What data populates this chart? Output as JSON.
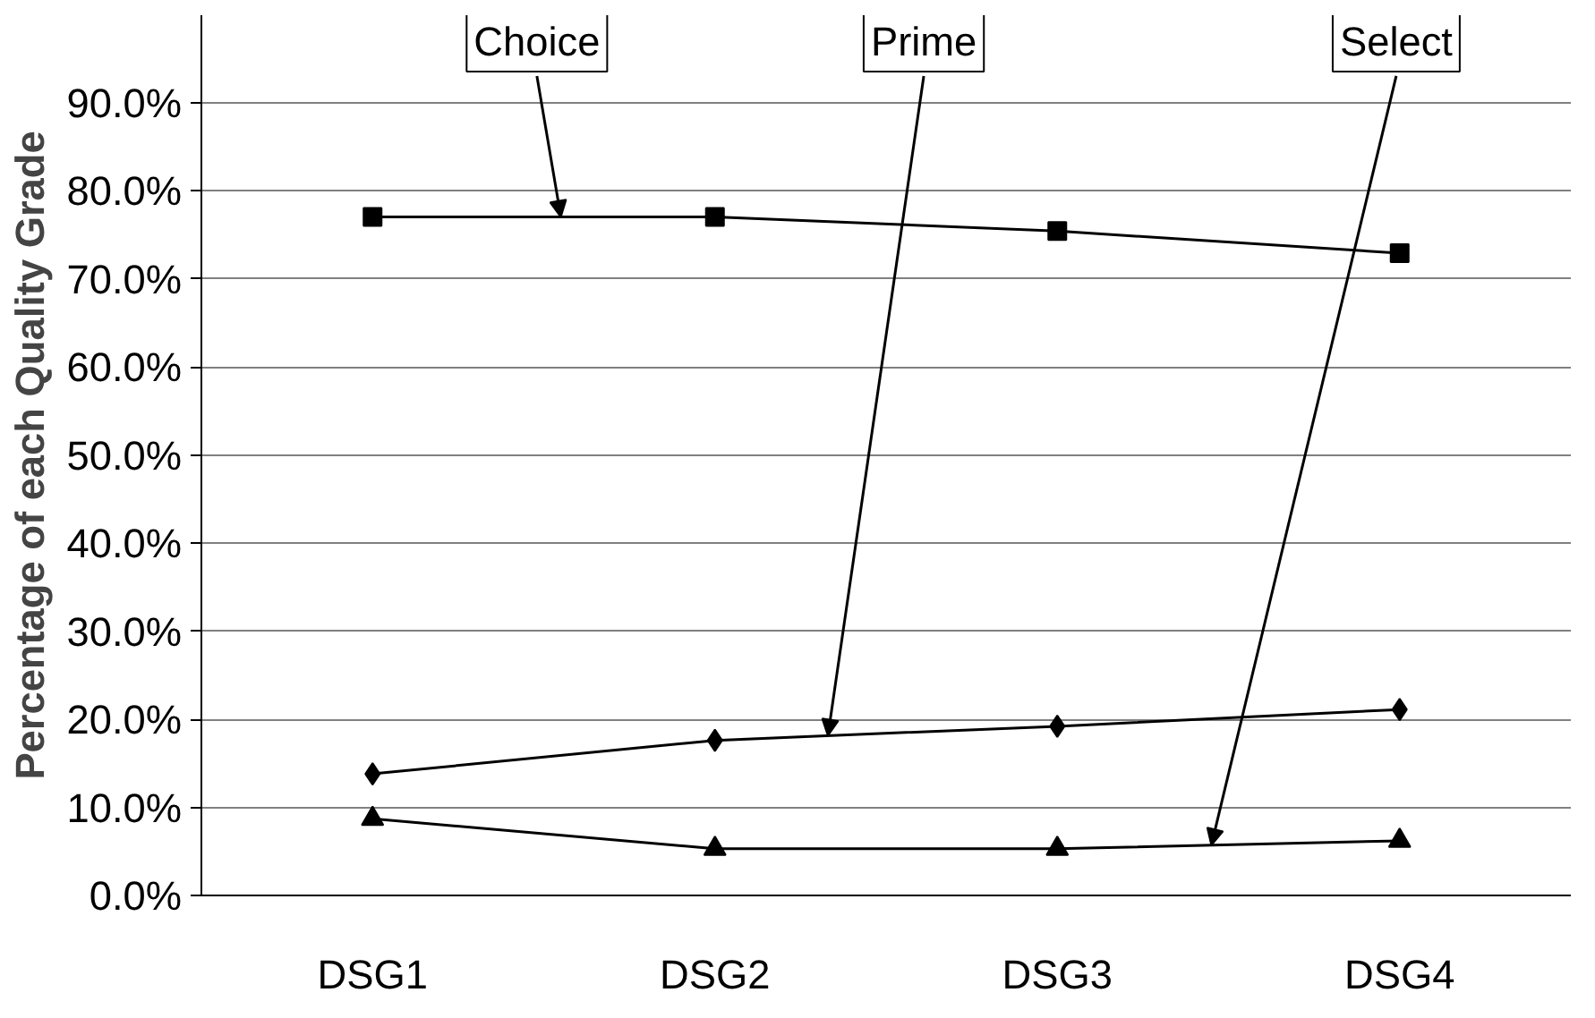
{
  "chart_data": {
    "type": "line",
    "ylabel": "Percentage of each Quality Grade",
    "categories": [
      "DSG1",
      "DSG2",
      "DSG3",
      "DSG4"
    ],
    "series": [
      {
        "name": "Choice",
        "color": "#000000",
        "marker": "square",
        "values": [
          77.0,
          77.0,
          75.4,
          72.9
        ]
      },
      {
        "name": "Prime",
        "color": "#000000",
        "marker": "diamond",
        "values": [
          13.8,
          17.6,
          19.2,
          21.1
        ]
      },
      {
        "name": "Select",
        "color": "#000000",
        "marker": "triangle",
        "values": [
          8.7,
          5.3,
          5.3,
          6.2
        ]
      }
    ],
    "ylim": [
      0,
      90
    ],
    "yticks": [
      {
        "value": 0,
        "label": "0.0%"
      },
      {
        "value": 10,
        "label": "10.0%"
      },
      {
        "value": 20,
        "label": "20.0%"
      },
      {
        "value": 30,
        "label": "30.0%"
      },
      {
        "value": 40,
        "label": "40.0%"
      },
      {
        "value": 50,
        "label": "50.0%"
      },
      {
        "value": 60,
        "label": "60.0%"
      },
      {
        "value": 70,
        "label": "70.0%"
      },
      {
        "value": 80,
        "label": "80.0%"
      },
      {
        "value": 90,
        "label": "90.0%"
      }
    ],
    "grid": "y"
  }
}
